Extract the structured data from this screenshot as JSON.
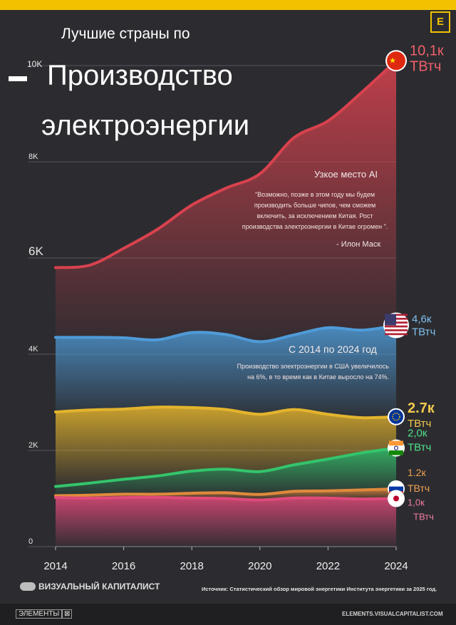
{
  "title": {
    "line1": "Лучшие страны по",
    "line2": "Производство",
    "line3": "электроэнергии"
  },
  "chart_data": {
    "type": "area",
    "x": [
      2014,
      2015,
      2016,
      2017,
      2018,
      2019,
      2020,
      2021,
      2022,
      2023,
      2024
    ],
    "xticks": [
      "2014",
      "2016",
      "2018",
      "2020",
      "2022",
      "2024"
    ],
    "yticks": [
      "0",
      "2K",
      "4K",
      "6K",
      "8K",
      "10K"
    ],
    "ylim": [
      0,
      10000
    ],
    "xlim": [
      2014,
      2024
    ],
    "series": [
      {
        "key": "china",
        "values": [
          5800,
          5850,
          6200,
          6600,
          7100,
          7450,
          7750,
          8500,
          8850,
          9450,
          10100
        ],
        "color": "#d8424e",
        "label_value": "10,1к",
        "label_unit": "ТВтч",
        "value_color": "#ef5f6a",
        "unit_color": "#ef5f6a",
        "flag": "china-flag-icon"
      },
      {
        "key": "usa",
        "values": [
          4350,
          4350,
          4340,
          4300,
          4450,
          4410,
          4260,
          4400,
          4550,
          4500,
          4600
        ],
        "color": "#4f9bd8",
        "label_value": "4,6к",
        "label_unit": "ТВтч",
        "value_color": "#7fc0f0",
        "unit_color": "#7fc0f0",
        "flag": "usa-flag-icon"
      },
      {
        "key": "eu",
        "values": [
          2800,
          2840,
          2860,
          2900,
          2890,
          2850,
          2750,
          2850,
          2750,
          2680,
          2700
        ],
        "color": "#e3b42d",
        "label_value": "2.7к",
        "label_unit": "ТВтч",
        "value_color": "#f2c94c",
        "unit_color": "#f2c94c",
        "flag": "eu-flag-icon"
      },
      {
        "key": "india",
        "values": [
          1250,
          1320,
          1400,
          1470,
          1570,
          1610,
          1560,
          1700,
          1820,
          1950,
          2050
        ],
        "color": "#34c46c",
        "label_value": "2,0к",
        "label_unit": "ТВтч",
        "value_color": "#4fe08a",
        "unit_color": "#4fe08a",
        "flag": "india-flag-icon"
      },
      {
        "key": "russia",
        "values": [
          1060,
          1070,
          1090,
          1090,
          1110,
          1120,
          1085,
          1150,
          1160,
          1180,
          1200
        ],
        "color": "#e08a3c",
        "label_value": "1.2к",
        "label_unit": "ТВтч",
        "value_color": "#f0a050",
        "unit_color": "#f0a050",
        "flag": "russia-flag-icon"
      },
      {
        "key": "japan",
        "values": [
          1020,
          1010,
          1020,
          1025,
          1010,
          1000,
          970,
          1010,
          1010,
          990,
          1000
        ],
        "color": "#e04a7a",
        "label_value": "1,0к",
        "label_unit": "ТВтч",
        "value_color": "#f07ca0",
        "unit_color": "#f07ca0",
        "flag": "japan-flag-icon"
      }
    ],
    "annotations": [
      {
        "heading": "Узкое место AI",
        "body": [
          "\"Возможно, позже в этом году мы будем",
          "производить больше чипов, чем сможем",
          "включить, за исключением Китая. Рост",
          "производства электроэнергии в Китае огромен \"."
        ],
        "author": "- Илон Маск"
      },
      {
        "heading": "С 2014 по 2024 год",
        "body": [
          "Производство электроэнергии в США увеличилось",
          "на 6%, в то время как в Китае выросло на 74%."
        ]
      }
    ]
  },
  "footer": {
    "brand": "ВИЗУАЛЬНЫЙ КАПИТАЛИСТ",
    "source": "Источник: Статистический обзор мировой энергетики Института энергетики за 2025 год.",
    "elements_label": "ЭЛЕМЕНТЫ",
    "elements_url": "ELEMENTS.VISUALCAPITALIST.COM",
    "corner_logo": "E"
  }
}
